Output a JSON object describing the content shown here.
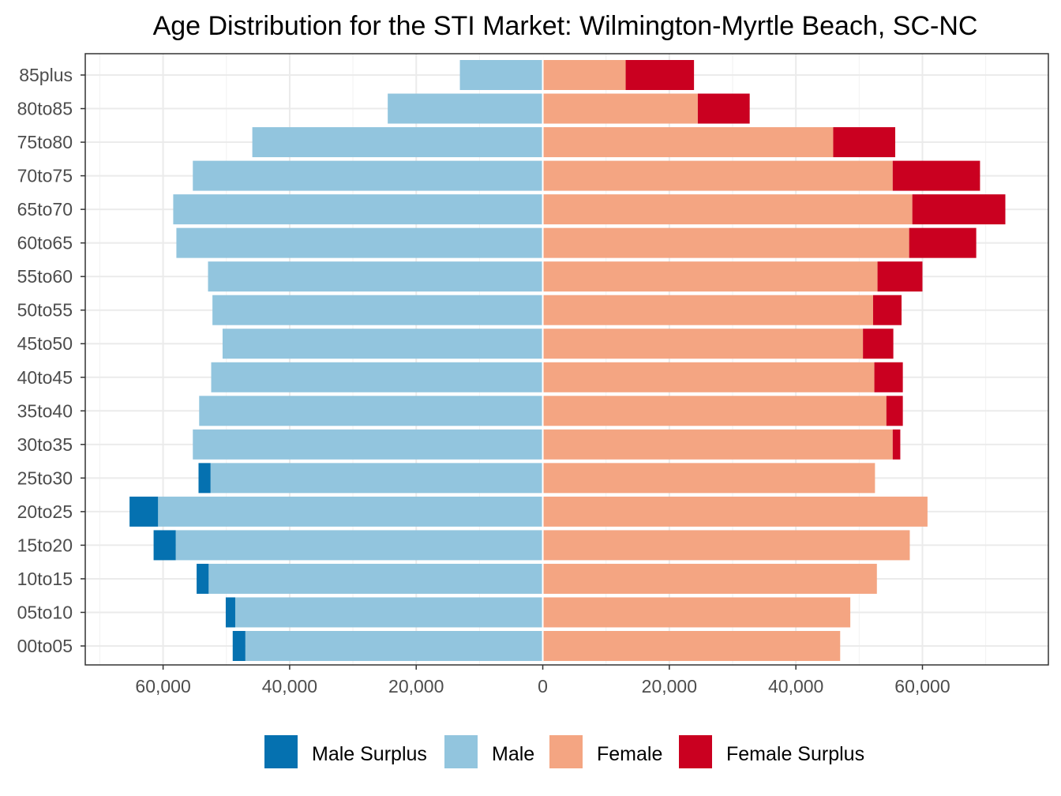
{
  "chart_data": {
    "type": "bar",
    "orientation": "horizontal",
    "title": "Age Distribution for the STI Market: Wilmington-Myrtle Beach, SC-NC",
    "xlabel": "",
    "ylabel": "",
    "xlim": [
      -72300,
      79900
    ],
    "x_ticks": [
      -60000,
      -40000,
      -20000,
      0,
      20000,
      40000,
      60000
    ],
    "x_tick_labels": [
      "60,000",
      "40,000",
      "20,000",
      "0",
      "20,000",
      "40,000",
      "60,000"
    ],
    "grid": true,
    "legend_position": "bottom",
    "categories": [
      "85plus",
      "80to85",
      "75to80",
      "70to75",
      "65to70",
      "60to65",
      "55to60",
      "50to55",
      "45to50",
      "40to45",
      "35to40",
      "30to35",
      "25to30",
      "20to25",
      "15to20",
      "10to15",
      "05to10",
      "00to05"
    ],
    "male": [
      13100,
      24500,
      45900,
      55300,
      58400,
      57900,
      52900,
      52200,
      50600,
      52400,
      54300,
      55300,
      54400,
      65300,
      61500,
      54700,
      50100,
      49000
    ],
    "female": [
      23900,
      32700,
      55700,
      69100,
      73100,
      68500,
      60000,
      56700,
      55400,
      56900,
      56900,
      56500,
      52500,
      60800,
      58000,
      52800,
      48600,
      47000
    ],
    "series": [
      {
        "name": "Male Surplus",
        "color": "#0571b0"
      },
      {
        "name": "Male",
        "color": "#92c5de"
      },
      {
        "name": "Female",
        "color": "#f4a582"
      },
      {
        "name": "Female Surplus",
        "color": "#ca0020"
      }
    ]
  }
}
